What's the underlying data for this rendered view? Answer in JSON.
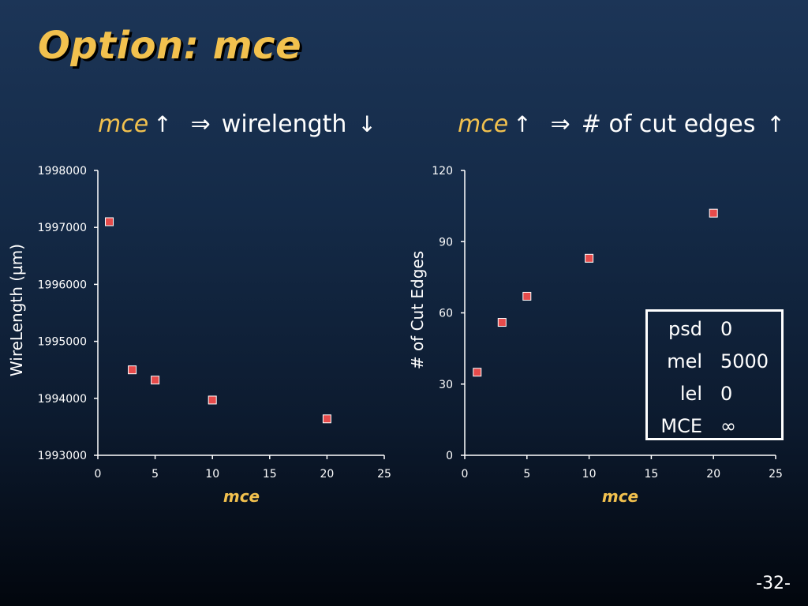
{
  "slide": {
    "title": "Option:  mce",
    "page_number": "-32-",
    "left_heading": {
      "keyword": "mce",
      "arrow1": "↑",
      "implies": "⇒",
      "text": "wirelength",
      "arrow2": "↓"
    },
    "right_heading": {
      "keyword": "mce",
      "arrow1": "↑",
      "implies": "⇒",
      "text": "# of cut edges",
      "arrow2": "↑"
    },
    "colors": {
      "title": "#f2c14e",
      "keyword": "#f2c14e",
      "marker": "#e64b4b",
      "axis": "#ffffff"
    }
  },
  "legend": {
    "rows": [
      {
        "key": "psd",
        "value": "0"
      },
      {
        "key": "mel",
        "value": "5000"
      },
      {
        "key": "lel",
        "value": "0"
      },
      {
        "key": "MCE",
        "value": "∞"
      }
    ]
  },
  "chart_data": [
    {
      "type": "scatter",
      "title": "",
      "xlabel": "mce",
      "ylabel": "WireLength (µm)",
      "x": [
        1,
        3,
        5,
        10,
        20
      ],
      "y": [
        1997100,
        1994500,
        1994320,
        1993970,
        1993640
      ],
      "xlim": [
        0,
        25
      ],
      "ylim": [
        1993000,
        1998000
      ],
      "xticks": [
        0,
        5,
        10,
        15,
        20,
        25
      ],
      "yticks": [
        1993000,
        1994000,
        1995000,
        1996000,
        1997000,
        1998000
      ],
      "grid": false,
      "marker": "square"
    },
    {
      "type": "scatter",
      "title": "",
      "xlabel": "mce",
      "ylabel": "# of Cut Edges",
      "x": [
        1,
        3,
        5,
        10,
        20
      ],
      "y": [
        35,
        56,
        67,
        83,
        102
      ],
      "xlim": [
        0,
        25
      ],
      "ylim": [
        0,
        120
      ],
      "xticks": [
        0,
        5,
        10,
        15,
        20,
        25
      ],
      "yticks": [
        0,
        30,
        60,
        90,
        120
      ],
      "grid": false,
      "marker": "square"
    }
  ]
}
